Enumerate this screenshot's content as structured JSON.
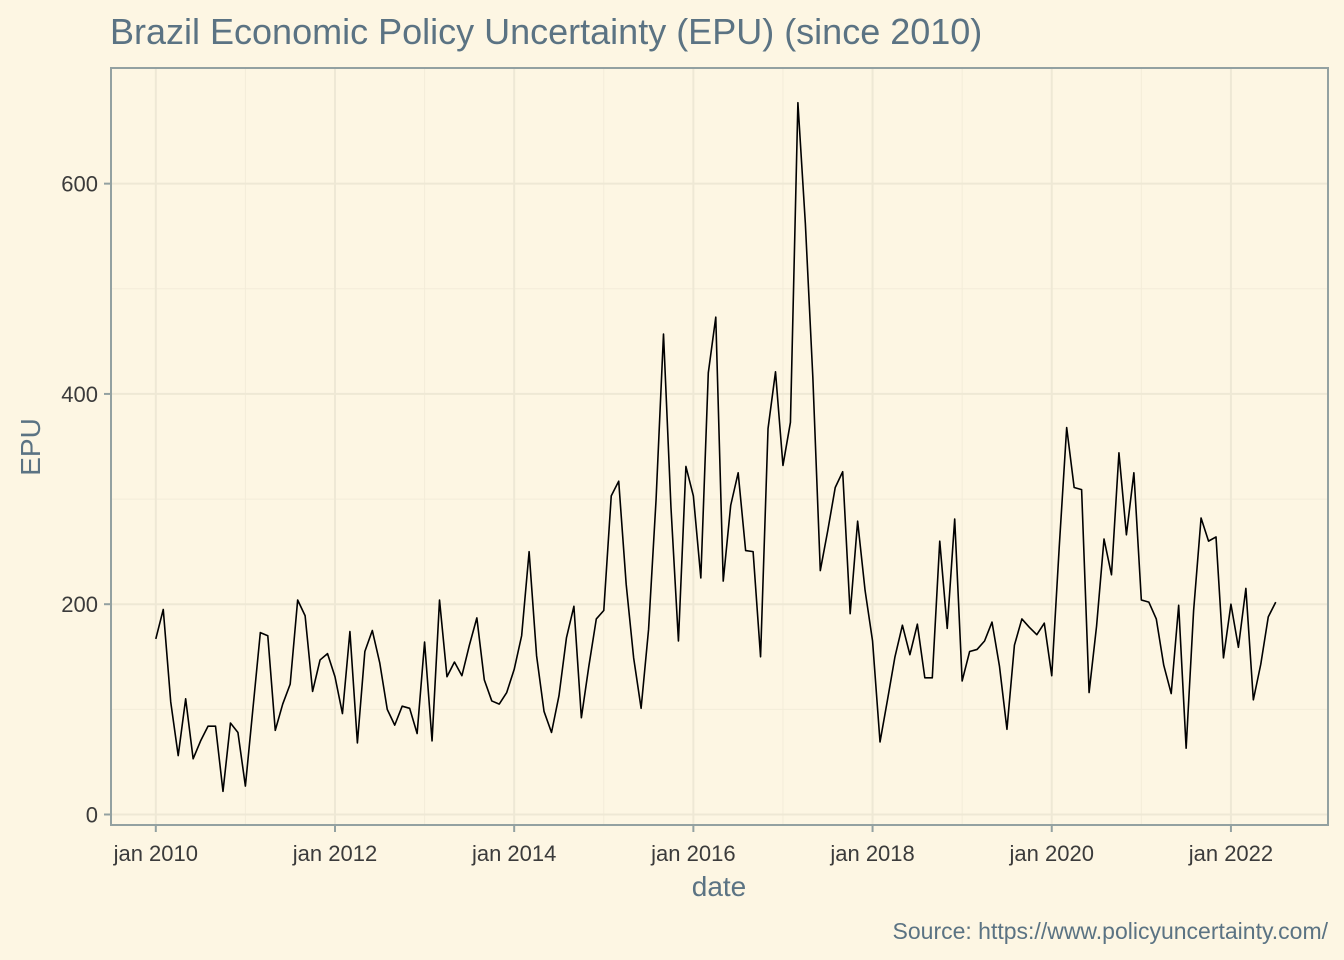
{
  "chart_data": {
    "type": "line",
    "title": "Brazil Economic Policy Uncertainty (EPU) (since 2010)",
    "xlabel": "date",
    "ylabel": "EPU",
    "caption": "Source: https://www.policyuncertainty.com/",
    "x_ticks": [
      {
        "date": "2010-01",
        "label": "jan 2010"
      },
      {
        "date": "2012-01",
        "label": "jan 2012"
      },
      {
        "date": "2014-01",
        "label": "jan 2014"
      },
      {
        "date": "2016-01",
        "label": "jan 2016"
      },
      {
        "date": "2018-01",
        "label": "jan 2018"
      },
      {
        "date": "2020-01",
        "label": "jan 2020"
      },
      {
        "date": "2022-01",
        "label": "jan 2022"
      }
    ],
    "y_ticks": [
      0,
      200,
      400,
      600
    ],
    "xlim": [
      "2009-07",
      "2023-02"
    ],
    "ylim": [
      -10,
      710
    ],
    "grid": true,
    "colors": {
      "background": "#fdf6e3",
      "line": "#000000",
      "grid": "#eee8d5",
      "border": "#93a1a1",
      "text": "#5b7383"
    },
    "series": [
      {
        "x": [
          "2010-01",
          "2010-02",
          "2010-03",
          "2010-04",
          "2010-05",
          "2010-06",
          "2010-07",
          "2010-08",
          "2010-09",
          "2010-10",
          "2010-11",
          "2010-12",
          "2011-01",
          "2011-02",
          "2011-03",
          "2011-04",
          "2011-05",
          "2011-06",
          "2011-07",
          "2011-08",
          "2011-09",
          "2011-10",
          "2011-11",
          "2011-12",
          "2012-01",
          "2012-02",
          "2012-03",
          "2012-04",
          "2012-05",
          "2012-06",
          "2012-07",
          "2012-08",
          "2012-09",
          "2012-10",
          "2012-11",
          "2012-12",
          "2013-01",
          "2013-02",
          "2013-03",
          "2013-04",
          "2013-05",
          "2013-06",
          "2013-07",
          "2013-08",
          "2013-09",
          "2013-10",
          "2013-11",
          "2013-12",
          "2014-01",
          "2014-02",
          "2014-03",
          "2014-04",
          "2014-05",
          "2014-06",
          "2014-07",
          "2014-08",
          "2014-09",
          "2014-10",
          "2014-11",
          "2014-12",
          "2015-01",
          "2015-02",
          "2015-03",
          "2015-04",
          "2015-05",
          "2015-06",
          "2015-07",
          "2015-08",
          "2015-09",
          "2015-10",
          "2015-11",
          "2015-12",
          "2016-01",
          "2016-02",
          "2016-03",
          "2016-04",
          "2016-05",
          "2016-06",
          "2016-07",
          "2016-08",
          "2016-09",
          "2016-10",
          "2016-11",
          "2016-12",
          "2017-01",
          "2017-02",
          "2017-03",
          "2017-04",
          "2017-05",
          "2017-06",
          "2017-07",
          "2017-08",
          "2017-09",
          "2017-10",
          "2017-11",
          "2017-12",
          "2018-01",
          "2018-02",
          "2018-03",
          "2018-04",
          "2018-05",
          "2018-06",
          "2018-07",
          "2018-08",
          "2018-09",
          "2018-10",
          "2018-11",
          "2018-12",
          "2019-01",
          "2019-02",
          "2019-03",
          "2019-04",
          "2019-05",
          "2019-06",
          "2019-07",
          "2019-08",
          "2019-09",
          "2019-10",
          "2019-11",
          "2019-12",
          "2020-01",
          "2020-02",
          "2020-03",
          "2020-04",
          "2020-05",
          "2020-06",
          "2020-07",
          "2020-08",
          "2020-09",
          "2020-10",
          "2020-11",
          "2020-12",
          "2021-01",
          "2021-02",
          "2021-03",
          "2021-04",
          "2021-05",
          "2021-06",
          "2021-07",
          "2021-08",
          "2021-09",
          "2021-10",
          "2021-11",
          "2021-12",
          "2022-01",
          "2022-02",
          "2022-03",
          "2022-04",
          "2022-05",
          "2022-06",
          "2022-07"
        ],
        "y": [
          167,
          195,
          107,
          56,
          110,
          53,
          70,
          84,
          84,
          22,
          87,
          78,
          27,
          100,
          173,
          170,
          80,
          105,
          124,
          204,
          189,
          117,
          147,
          153,
          131,
          96,
          174,
          68,
          155,
          175,
          144,
          100,
          85,
          103,
          101,
          77,
          164,
          70,
          204,
          131,
          145,
          132,
          161,
          187,
          128,
          108,
          105,
          116,
          138,
          170,
          250,
          151,
          98,
          78,
          113,
          168,
          198,
          92,
          141,
          186,
          194,
          303,
          317,
          219,
          149,
          101,
          176,
          299,
          457,
          292,
          165,
          331,
          303,
          225,
          420,
          473,
          222,
          294,
          325,
          251,
          250,
          150,
          367,
          421,
          332,
          373,
          677,
          562,
          416,
          232,
          270,
          311,
          326,
          191,
          279,
          213,
          165,
          69,
          109,
          150,
          180,
          152,
          181,
          130,
          130,
          260,
          177,
          281,
          127,
          155,
          157,
          165,
          183,
          141,
          81,
          161,
          186,
          178,
          171,
          182,
          132,
          254,
          368,
          311,
          309,
          116,
          179,
          262,
          228,
          344,
          266,
          325,
          204,
          202,
          186,
          142,
          115,
          199,
          63,
          194,
          282,
          260,
          264,
          149,
          200,
          159,
          215,
          109,
          143,
          188,
          202
        ]
      }
    ]
  }
}
